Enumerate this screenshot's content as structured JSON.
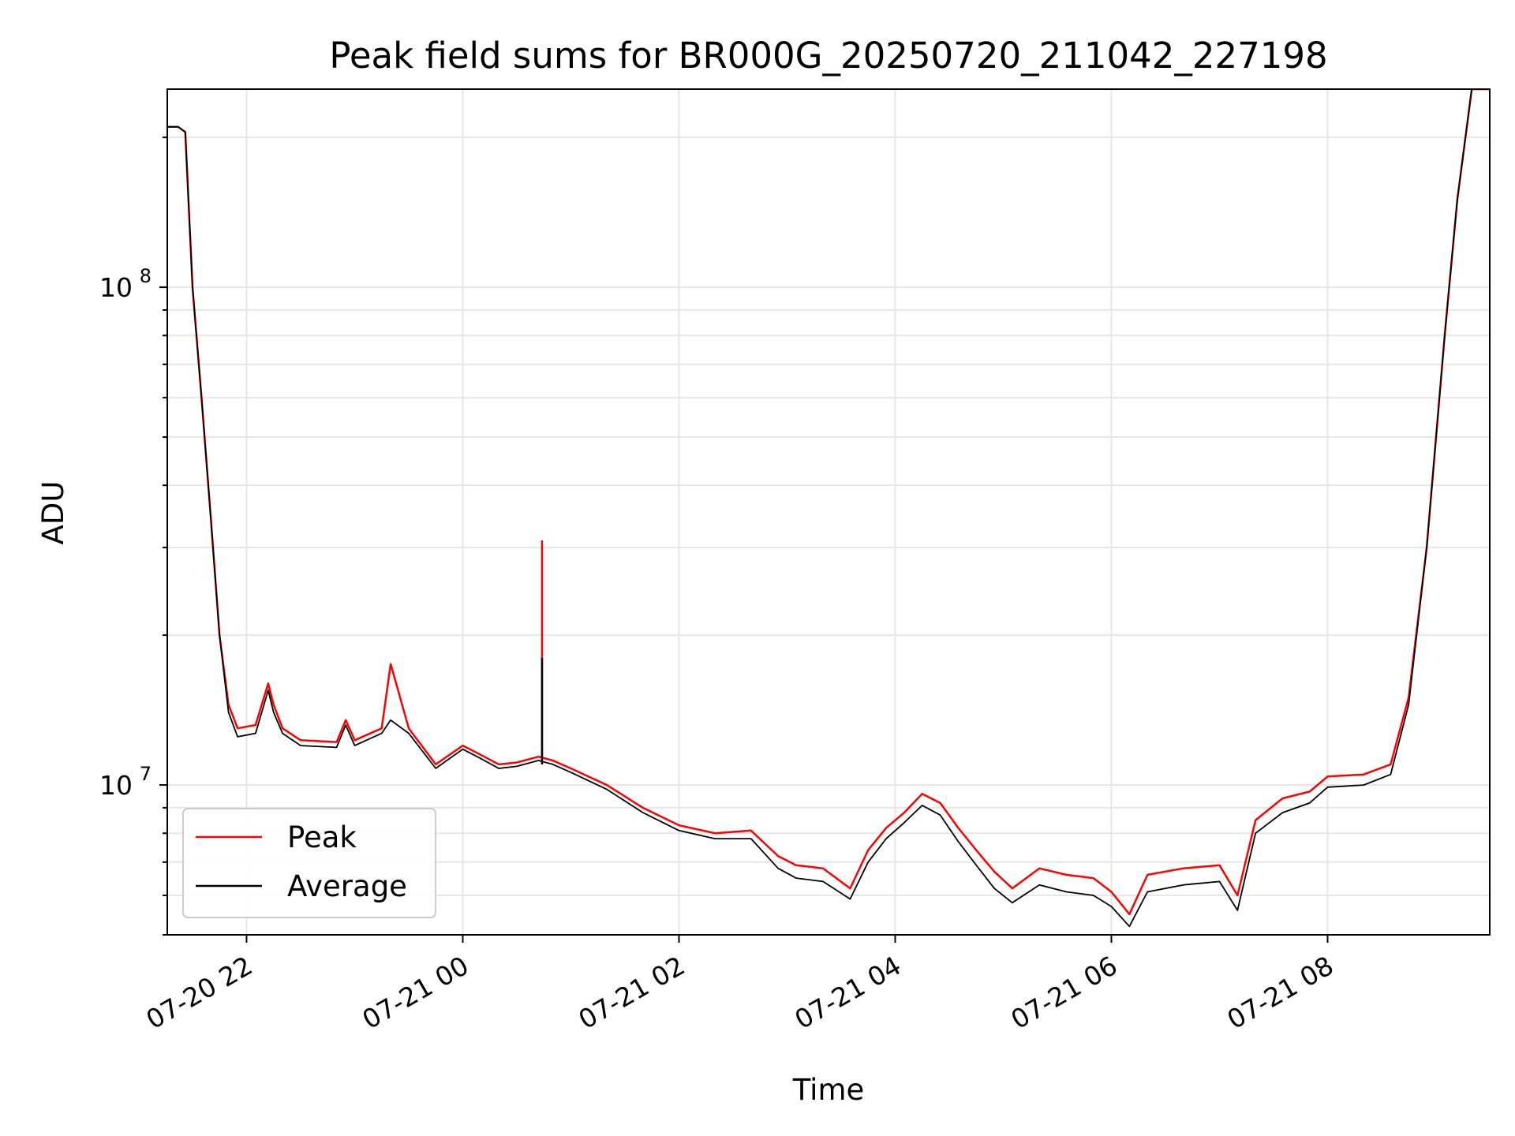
{
  "chart_data": {
    "type": "line",
    "title": "Peak field sums for BR000G_20250720_211042_227198",
    "xlabel": "Time",
    "ylabel": "ADU",
    "y_scale": "log",
    "ylim": [
      5000000,
      250000000
    ],
    "xlim": [
      "2025-07-20 21:16",
      "2025-07-21 09:30"
    ],
    "x_ticks": [
      {
        "value": "2025-07-20 22:00",
        "label": "07-20 22"
      },
      {
        "value": "2025-07-21 00:00",
        "label": "07-21 00"
      },
      {
        "value": "2025-07-21 02:00",
        "label": "07-21 02"
      },
      {
        "value": "2025-07-21 04:00",
        "label": "07-21 04"
      },
      {
        "value": "2025-07-21 06:00",
        "label": "07-21 06"
      },
      {
        "value": "2025-07-21 08:00",
        "label": "07-21 08"
      }
    ],
    "y_ticks": [
      {
        "value": 10000000,
        "base": "10",
        "exp": "7"
      },
      {
        "value": 100000000,
        "base": "10",
        "exp": "8"
      }
    ],
    "grid": true,
    "legend_position": "lower-left",
    "x": [
      "2025-07-20 21:16",
      "2025-07-20 21:22",
      "2025-07-20 21:26",
      "2025-07-20 21:30",
      "2025-07-20 21:35",
      "2025-07-20 21:40",
      "2025-07-20 21:45",
      "2025-07-20 21:50",
      "2025-07-20 21:55",
      "2025-07-20 22:05",
      "2025-07-20 22:12",
      "2025-07-20 22:15",
      "2025-07-20 22:20",
      "2025-07-20 22:30",
      "2025-07-20 22:50",
      "2025-07-20 22:55",
      "2025-07-20 23:00",
      "2025-07-20 23:15",
      "2025-07-20 23:20",
      "2025-07-20 23:30",
      "2025-07-20 23:45",
      "2025-07-21 00:00",
      "2025-07-21 00:10",
      "2025-07-21 00:20",
      "2025-07-21 00:30",
      "2025-07-21 00:42",
      "2025-07-21 00:50",
      "2025-07-21 01:00",
      "2025-07-21 01:20",
      "2025-07-21 01:40",
      "2025-07-21 02:00",
      "2025-07-21 02:20",
      "2025-07-21 02:40",
      "2025-07-21 02:55",
      "2025-07-21 03:05",
      "2025-07-21 03:20",
      "2025-07-21 03:35",
      "2025-07-21 03:45",
      "2025-07-21 03:55",
      "2025-07-21 04:05",
      "2025-07-21 04:15",
      "2025-07-21 04:25",
      "2025-07-21 04:35",
      "2025-07-21 04:45",
      "2025-07-21 04:55",
      "2025-07-21 05:05",
      "2025-07-21 05:20",
      "2025-07-21 05:35",
      "2025-07-21 05:50",
      "2025-07-21 06:00",
      "2025-07-21 06:10",
      "2025-07-21 06:20",
      "2025-07-21 06:40",
      "2025-07-21 07:00",
      "2025-07-21 07:10",
      "2025-07-21 07:20",
      "2025-07-21 07:35",
      "2025-07-21 07:50",
      "2025-07-21 08:00",
      "2025-07-21 08:20",
      "2025-07-21 08:35",
      "2025-07-21 08:45",
      "2025-07-21 08:55",
      "2025-07-21 09:05",
      "2025-07-21 09:12",
      "2025-07-21 09:20",
      "2025-07-21 09:30"
    ],
    "series": [
      {
        "name": "Peak",
        "color": "#ff0000",
        "values": [
          210000000,
          210000000,
          205000000,
          100000000,
          60000000,
          35000000,
          20000000,
          14500000,
          13000000,
          13200000,
          16000000,
          14500000,
          13000000,
          12300000,
          12200000,
          13500000,
          12300000,
          13000000,
          17500000,
          13000000,
          11000000,
          12000000,
          11500000,
          11000000,
          11100000,
          11400000,
          11200000,
          10800000,
          10000000,
          9000000,
          8300000,
          8000000,
          8100000,
          7200000,
          6900000,
          6800000,
          6200000,
          7400000,
          8200000,
          8800000,
          9600000,
          9200000,
          8200000,
          7400000,
          6700000,
          6200000,
          6800000,
          6600000,
          6500000,
          6100000,
          5500000,
          6600000,
          6800000,
          6900000,
          6000000,
          8500000,
          9400000,
          9700000,
          10400000,
          10500000,
          11000000,
          15000000,
          30000000,
          80000000,
          150000000,
          250000000,
          250000000
        ]
      },
      {
        "name": "Average",
        "color": "#000000",
        "values": [
          210000000,
          210000000,
          205000000,
          100000000,
          60000000,
          35000000,
          20000000,
          14000000,
          12500000,
          12700000,
          15500000,
          14000000,
          12700000,
          12000000,
          11900000,
          13200000,
          12000000,
          12700000,
          13500000,
          12700000,
          10800000,
          11800000,
          11300000,
          10800000,
          10900000,
          11200000,
          11000000,
          10600000,
          9800000,
          8800000,
          8100000,
          7800000,
          7800000,
          6800000,
          6500000,
          6400000,
          5900000,
          7000000,
          7800000,
          8400000,
          9100000,
          8700000,
          7700000,
          6900000,
          6200000,
          5800000,
          6300000,
          6100000,
          6000000,
          5700000,
          5200000,
          6100000,
          6300000,
          6400000,
          5600000,
          8000000,
          8800000,
          9200000,
          9900000,
          10000000,
          10500000,
          14500000,
          30000000,
          80000000,
          150000000,
          250000000,
          250000000
        ]
      }
    ],
    "annotations": [
      {
        "series": "Peak",
        "x": "2025-07-21 00:44",
        "value": 31000000
      },
      {
        "series": "Average",
        "x": "2025-07-21 00:44",
        "value": 18000000
      }
    ]
  }
}
